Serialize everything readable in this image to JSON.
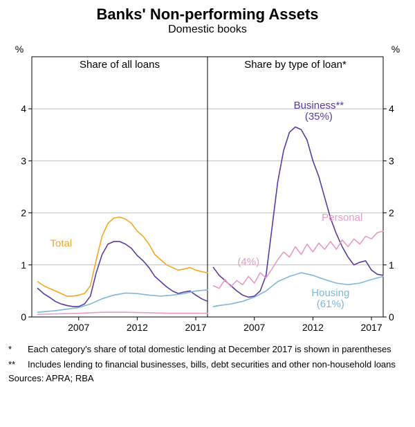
{
  "title": "Banks' Non-performing Assets",
  "title_fontsize": 22,
  "subtitle": "Domestic books",
  "subtitle_fontsize": 16,
  "background_color": "#ffffff",
  "text_color": "#000000",
  "axis_color": "#000000",
  "grid_color": "#c0c0c0",
  "ylim": [
    0,
    5
  ],
  "yticks": [
    0,
    1,
    2,
    3,
    4
  ],
  "ylabel": "%",
  "xlim": [
    2003,
    2018
  ],
  "xticks": [
    2007,
    2012,
    2017
  ],
  "axis_fontsize": 14,
  "panel_title_fontsize": 15,
  "series_label_fontsize": 15,
  "left_panel": {
    "title": "Share of all loans",
    "series": {
      "total": {
        "label": "Total",
        "color": "#f5a623",
        "label_x": 2005.5,
        "label_y": 1.35,
        "data": [
          [
            2003.5,
            0.68
          ],
          [
            2004,
            0.6
          ],
          [
            2004.5,
            0.55
          ],
          [
            2005,
            0.5
          ],
          [
            2005.5,
            0.45
          ],
          [
            2006,
            0.4
          ],
          [
            2006.5,
            0.4
          ],
          [
            2007,
            0.42
          ],
          [
            2007.5,
            0.45
          ],
          [
            2008,
            0.6
          ],
          [
            2008.5,
            1.1
          ],
          [
            2009,
            1.55
          ],
          [
            2009.5,
            1.8
          ],
          [
            2010,
            1.9
          ],
          [
            2010.5,
            1.92
          ],
          [
            2011,
            1.88
          ],
          [
            2011.5,
            1.8
          ],
          [
            2012,
            1.65
          ],
          [
            2012.5,
            1.55
          ],
          [
            2013,
            1.4
          ],
          [
            2013.5,
            1.2
          ],
          [
            2014,
            1.1
          ],
          [
            2014.5,
            1.0
          ],
          [
            2015,
            0.95
          ],
          [
            2015.5,
            0.9
          ],
          [
            2016,
            0.92
          ],
          [
            2016.5,
            0.95
          ],
          [
            2017,
            0.9
          ],
          [
            2017.5,
            0.87
          ],
          [
            2018,
            0.85
          ]
        ]
      },
      "impaired": {
        "label": "",
        "color": "#5b3b9e",
        "data": [
          [
            2003.5,
            0.55
          ],
          [
            2004,
            0.45
          ],
          [
            2004.5,
            0.38
          ],
          [
            2005,
            0.3
          ],
          [
            2005.5,
            0.25
          ],
          [
            2006,
            0.22
          ],
          [
            2006.5,
            0.2
          ],
          [
            2007,
            0.2
          ],
          [
            2007.5,
            0.25
          ],
          [
            2008,
            0.4
          ],
          [
            2008.5,
            0.85
          ],
          [
            2009,
            1.2
          ],
          [
            2009.5,
            1.4
          ],
          [
            2010,
            1.45
          ],
          [
            2010.5,
            1.45
          ],
          [
            2011,
            1.4
          ],
          [
            2011.5,
            1.32
          ],
          [
            2012,
            1.18
          ],
          [
            2012.5,
            1.08
          ],
          [
            2013,
            0.95
          ],
          [
            2013.5,
            0.78
          ],
          [
            2014,
            0.68
          ],
          [
            2014.5,
            0.58
          ],
          [
            2015,
            0.5
          ],
          [
            2015.5,
            0.45
          ],
          [
            2016,
            0.48
          ],
          [
            2016.5,
            0.5
          ],
          [
            2017,
            0.42
          ],
          [
            2017.5,
            0.35
          ],
          [
            2018,
            0.3
          ]
        ]
      },
      "past_due_hh": {
        "label": "",
        "color": "#7db8d8",
        "data": [
          [
            2003.5,
            0.09
          ],
          [
            2004,
            0.1
          ],
          [
            2005,
            0.12
          ],
          [
            2006,
            0.15
          ],
          [
            2007,
            0.18
          ],
          [
            2008,
            0.25
          ],
          [
            2009,
            0.35
          ],
          [
            2010,
            0.42
          ],
          [
            2011,
            0.46
          ],
          [
            2012,
            0.45
          ],
          [
            2013,
            0.42
          ],
          [
            2014,
            0.4
          ],
          [
            2015,
            0.42
          ],
          [
            2016,
            0.45
          ],
          [
            2017,
            0.5
          ],
          [
            2018,
            0.52
          ]
        ]
      },
      "past_due_pers": {
        "label": "",
        "color": "#e89ac7",
        "data": [
          [
            2003.5,
            0.05
          ],
          [
            2005,
            0.06
          ],
          [
            2007,
            0.07
          ],
          [
            2009,
            0.09
          ],
          [
            2011,
            0.09
          ],
          [
            2013,
            0.08
          ],
          [
            2015,
            0.07
          ],
          [
            2017,
            0.07
          ],
          [
            2018,
            0.07
          ]
        ]
      }
    }
  },
  "right_panel": {
    "title": "Share by type of loan*",
    "series": {
      "business": {
        "label": "Business**",
        "sublabel": "(35%)",
        "color": "#5b3b9e",
        "label_x": 2012.5,
        "label_y": 4.0,
        "data": [
          [
            2003.5,
            0.95
          ],
          [
            2004,
            0.8
          ],
          [
            2004.5,
            0.7
          ],
          [
            2005,
            0.6
          ],
          [
            2005.5,
            0.5
          ],
          [
            2006,
            0.42
          ],
          [
            2006.5,
            0.38
          ],
          [
            2007,
            0.4
          ],
          [
            2007.5,
            0.5
          ],
          [
            2008,
            0.8
          ],
          [
            2008.5,
            1.7
          ],
          [
            2009,
            2.6
          ],
          [
            2009.5,
            3.2
          ],
          [
            2010,
            3.55
          ],
          [
            2010.5,
            3.65
          ],
          [
            2011,
            3.6
          ],
          [
            2011.5,
            3.4
          ],
          [
            2012,
            3.0
          ],
          [
            2012.5,
            2.7
          ],
          [
            2013,
            2.3
          ],
          [
            2013.5,
            1.9
          ],
          [
            2014,
            1.6
          ],
          [
            2014.5,
            1.35
          ],
          [
            2015,
            1.15
          ],
          [
            2015.5,
            1.0
          ],
          [
            2016,
            1.05
          ],
          [
            2016.5,
            1.08
          ],
          [
            2017,
            0.9
          ],
          [
            2017.5,
            0.82
          ],
          [
            2018,
            0.8
          ]
        ]
      },
      "personal": {
        "label": "Personal",
        "sublabel": "(4%)",
        "color": "#e89ac7",
        "label_x": 2014.5,
        "label_y": 1.85,
        "data": [
          [
            2003.5,
            0.6
          ],
          [
            2004,
            0.55
          ],
          [
            2004.5,
            0.72
          ],
          [
            2005,
            0.58
          ],
          [
            2005.5,
            0.7
          ],
          [
            2006,
            0.62
          ],
          [
            2006.5,
            0.78
          ],
          [
            2007,
            0.65
          ],
          [
            2007.5,
            0.85
          ],
          [
            2008,
            0.75
          ],
          [
            2008.5,
            0.92
          ],
          [
            2009,
            1.1
          ],
          [
            2009.5,
            1.25
          ],
          [
            2010,
            1.15
          ],
          [
            2010.5,
            1.35
          ],
          [
            2011,
            1.2
          ],
          [
            2011.5,
            1.4
          ],
          [
            2012,
            1.25
          ],
          [
            2012.5,
            1.42
          ],
          [
            2013,
            1.3
          ],
          [
            2013.5,
            1.45
          ],
          [
            2014,
            1.3
          ],
          [
            2014.5,
            1.48
          ],
          [
            2015,
            1.35
          ],
          [
            2015.5,
            1.5
          ],
          [
            2016,
            1.4
          ],
          [
            2016.5,
            1.55
          ],
          [
            2017,
            1.5
          ],
          [
            2017.5,
            1.62
          ],
          [
            2018,
            1.65
          ]
        ]
      },
      "housing": {
        "label": "Housing",
        "sublabel": "(61%)",
        "color": "#7db8d8",
        "label_x": 2013.5,
        "label_y": 0.4,
        "data": [
          [
            2003.5,
            0.2
          ],
          [
            2004,
            0.22
          ],
          [
            2005,
            0.25
          ],
          [
            2006,
            0.3
          ],
          [
            2007,
            0.38
          ],
          [
            2008,
            0.5
          ],
          [
            2009,
            0.68
          ],
          [
            2010,
            0.78
          ],
          [
            2011,
            0.85
          ],
          [
            2012,
            0.8
          ],
          [
            2013,
            0.72
          ],
          [
            2014,
            0.65
          ],
          [
            2015,
            0.62
          ],
          [
            2016,
            0.65
          ],
          [
            2017,
            0.72
          ],
          [
            2018,
            0.78
          ]
        ]
      }
    }
  },
  "footnotes": [
    {
      "mark": "*",
      "text": "Each category's share of total domestic lending at December 2017 is shown in parentheses"
    },
    {
      "mark": "**",
      "text": "Includes lending to financial businesses, bills, debt securities and other non-household loans"
    }
  ],
  "sources": "Sources: APRA; RBA",
  "line_width": 1.6
}
